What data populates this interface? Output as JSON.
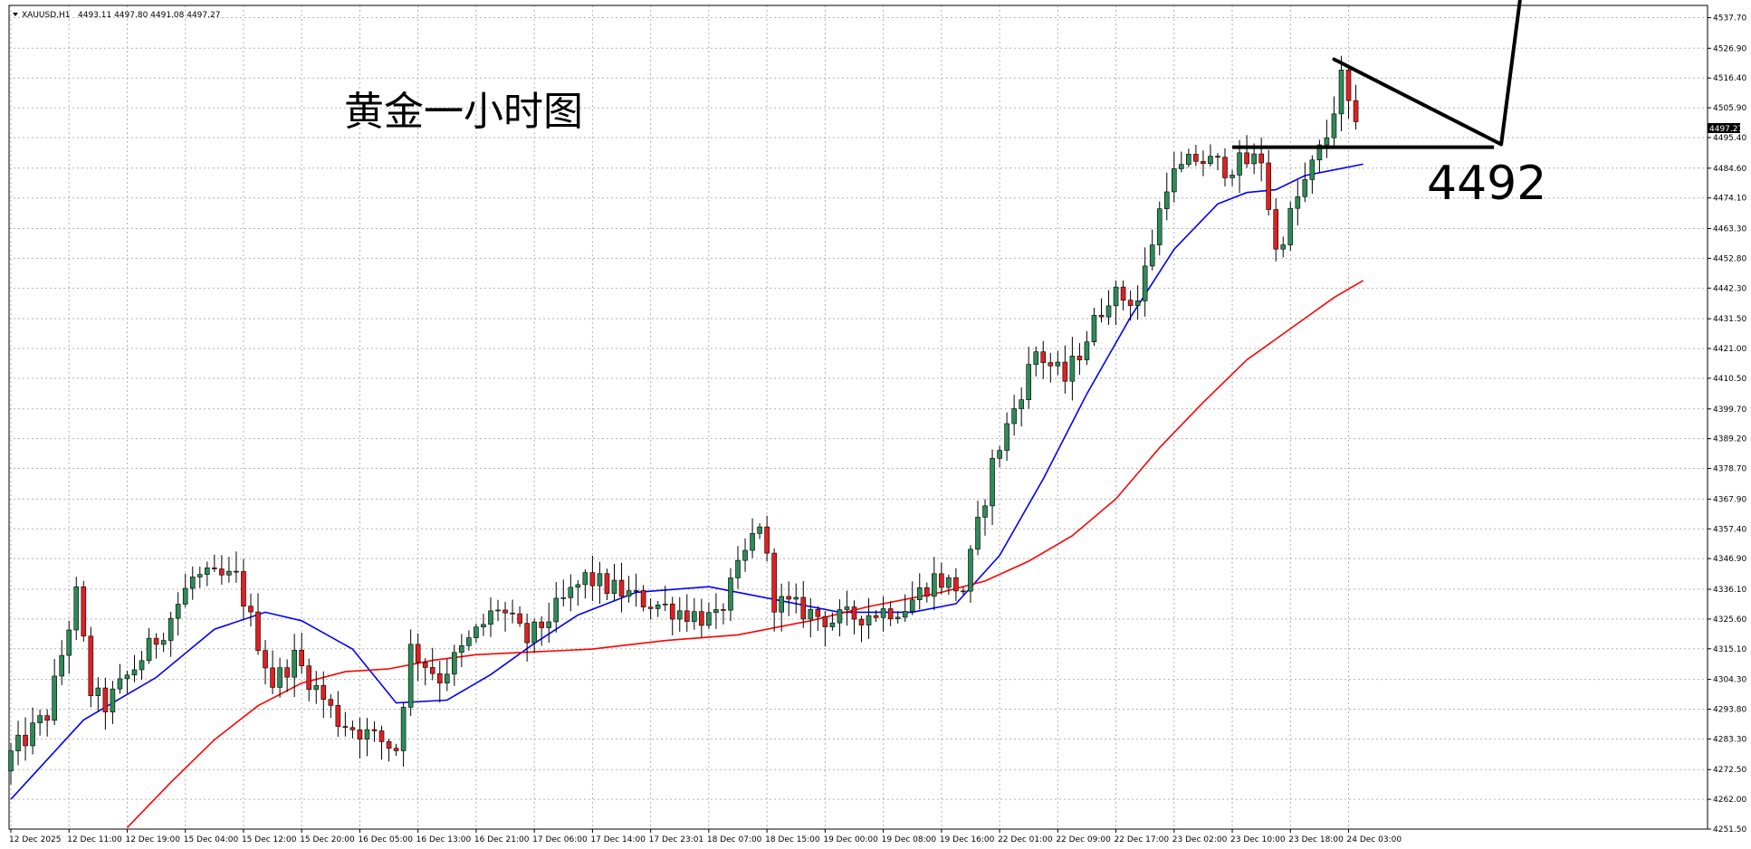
{
  "header": {
    "symbol": "XAUUSD,H1",
    "ohlc": "4493.11 4497.80 4491.08 4497.27"
  },
  "annotation": {
    "title": "黄金一小时图",
    "level_label": "4492",
    "level_value": 4492
  },
  "current_price": "4497.27",
  "colors": {
    "bull_body": "#2e8b57",
    "bear_body": "#e02020",
    "wick": "#000000",
    "ma_fast": "#0000ff",
    "ma_slow": "#ff0000",
    "grid": "#b4b4b4"
  },
  "chart_data": {
    "type": "candlestick",
    "title": "",
    "xlabel": "",
    "ylabel": "",
    "ylim": [
      4251.5,
      4542.0
    ],
    "yticks": [
      "4537.70",
      "4526.90",
      "4516.40",
      "4505.90",
      "4495.40",
      "4484.60",
      "4474.10",
      "4463.30",
      "4452.80",
      "4442.30",
      "4431.50",
      "4421.00",
      "4410.50",
      "4399.70",
      "4389.20",
      "4378.70",
      "4367.90",
      "4357.40",
      "4346.90",
      "4336.10",
      "4325.60",
      "4315.10",
      "4304.30",
      "4293.80",
      "4283.30",
      "4272.50",
      "4262.00",
      "4251.50"
    ],
    "ytick_values": [
      4537.7,
      4526.9,
      4516.4,
      4505.9,
      4495.4,
      4484.6,
      4474.1,
      4463.3,
      4452.8,
      4442.3,
      4431.5,
      4421.0,
      4410.5,
      4399.7,
      4389.2,
      4378.7,
      4367.9,
      4357.4,
      4346.9,
      4336.1,
      4325.6,
      4315.1,
      4304.3,
      4293.8,
      4283.3,
      4272.5,
      4262.0,
      4251.5
    ],
    "xticks": [
      "12 Dec 2025",
      "12 Dec 11:00",
      "12 Dec 19:00",
      "15 Dec 04:00",
      "15 Dec 12:00",
      "15 Dec 20:00",
      "16 Dec 05:00",
      "16 Dec 13:00",
      "16 Dec 21:00",
      "17 Dec 06:00",
      "17 Dec 14:00",
      "17 Dec 23:01",
      "18 Dec 07:00",
      "18 Dec 15:00",
      "19 Dec 00:00",
      "19 Dec 08:00",
      "19 Dec 16:00",
      "22 Dec 01:00",
      "22 Dec 09:00",
      "22 Dec 17:00",
      "23 Dec 02:00",
      "23 Dec 10:00",
      "23 Dec 18:00",
      "24 Dec 03:00"
    ],
    "xtick_bar_index": [
      0,
      8,
      16,
      24,
      32,
      40,
      48,
      56,
      64,
      72,
      80,
      88,
      96,
      104,
      112,
      120,
      128,
      136,
      144,
      152,
      160,
      168,
      176,
      184
    ],
    "candle_count": 186,
    "anchors": [
      {
        "i": 0,
        "v": 4275
      },
      {
        "i": 6,
        "v": 4292
      },
      {
        "i": 10,
        "v": 4334
      },
      {
        "i": 12,
        "v": 4300
      },
      {
        "i": 14,
        "v": 4295
      },
      {
        "i": 22,
        "v": 4322
      },
      {
        "i": 26,
        "v": 4340
      },
      {
        "i": 32,
        "v": 4340
      },
      {
        "i": 37,
        "v": 4303
      },
      {
        "i": 40,
        "v": 4312
      },
      {
        "i": 46,
        "v": 4290
      },
      {
        "i": 54,
        "v": 4280
      },
      {
        "i": 56,
        "v": 4315
      },
      {
        "i": 60,
        "v": 4305
      },
      {
        "i": 68,
        "v": 4330
      },
      {
        "i": 72,
        "v": 4318
      },
      {
        "i": 80,
        "v": 4340
      },
      {
        "i": 88,
        "v": 4332
      },
      {
        "i": 98,
        "v": 4325
      },
      {
        "i": 104,
        "v": 4360
      },
      {
        "i": 106,
        "v": 4332
      },
      {
        "i": 114,
        "v": 4325
      },
      {
        "i": 124,
        "v": 4330
      },
      {
        "i": 128,
        "v": 4340
      },
      {
        "i": 132,
        "v": 4336
      },
      {
        "i": 136,
        "v": 4380
      },
      {
        "i": 142,
        "v": 4420
      },
      {
        "i": 146,
        "v": 4410
      },
      {
        "i": 152,
        "v": 4440
      },
      {
        "i": 156,
        "v": 4438
      },
      {
        "i": 160,
        "v": 4480
      },
      {
        "i": 164,
        "v": 4488
      },
      {
        "i": 168,
        "v": 4485
      },
      {
        "i": 173,
        "v": 4488
      },
      {
        "i": 175,
        "v": 4455
      },
      {
        "i": 178,
        "v": 4474
      },
      {
        "i": 182,
        "v": 4496
      },
      {
        "i": 184,
        "v": 4516
      },
      {
        "i": 186,
        "v": 4497
      }
    ],
    "series": [
      {
        "name": "",
        "kind": "moving-average-fast",
        "points": [
          [
            0,
            4262
          ],
          [
            10,
            4290
          ],
          [
            20,
            4305
          ],
          [
            28,
            4322
          ],
          [
            35,
            4328
          ],
          [
            40,
            4325
          ],
          [
            47,
            4315
          ],
          [
            53,
            4296
          ],
          [
            60,
            4297
          ],
          [
            66,
            4306
          ],
          [
            72,
            4317
          ],
          [
            78,
            4327
          ],
          [
            86,
            4335
          ],
          [
            96,
            4337
          ],
          [
            104,
            4333
          ],
          [
            114,
            4328
          ],
          [
            124,
            4328
          ],
          [
            130,
            4331
          ],
          [
            136,
            4348
          ],
          [
            142,
            4375
          ],
          [
            148,
            4405
          ],
          [
            154,
            4432
          ],
          [
            160,
            4456
          ],
          [
            166,
            4472
          ],
          [
            170,
            4476
          ],
          [
            174,
            4477
          ],
          [
            178,
            4482
          ],
          [
            182,
            4484
          ],
          [
            186,
            4486
          ]
        ]
      },
      {
        "name": "",
        "kind": "moving-average-slow",
        "points": [
          [
            16,
            4252
          ],
          [
            22,
            4268
          ],
          [
            28,
            4283
          ],
          [
            34,
            4295
          ],
          [
            40,
            4303
          ],
          [
            46,
            4307
          ],
          [
            52,
            4308
          ],
          [
            58,
            4311
          ],
          [
            64,
            4313
          ],
          [
            72,
            4314
          ],
          [
            80,
            4315
          ],
          [
            90,
            4318
          ],
          [
            100,
            4320
          ],
          [
            110,
            4325
          ],
          [
            118,
            4330
          ],
          [
            128,
            4335
          ],
          [
            134,
            4339
          ],
          [
            140,
            4346
          ],
          [
            146,
            4355
          ],
          [
            152,
            4368
          ],
          [
            158,
            4386
          ],
          [
            164,
            4402
          ],
          [
            170,
            4417
          ],
          [
            176,
            4428
          ],
          [
            182,
            4439
          ],
          [
            186,
            4445
          ]
        ]
      }
    ],
    "horizontal_line": {
      "value": 4492,
      "from_bar": 168,
      "to_bar": 204
    },
    "projection_arrow": [
      [
        182,
        4523
      ],
      [
        205,
        4493
      ],
      [
        209,
        4572
      ]
    ]
  }
}
